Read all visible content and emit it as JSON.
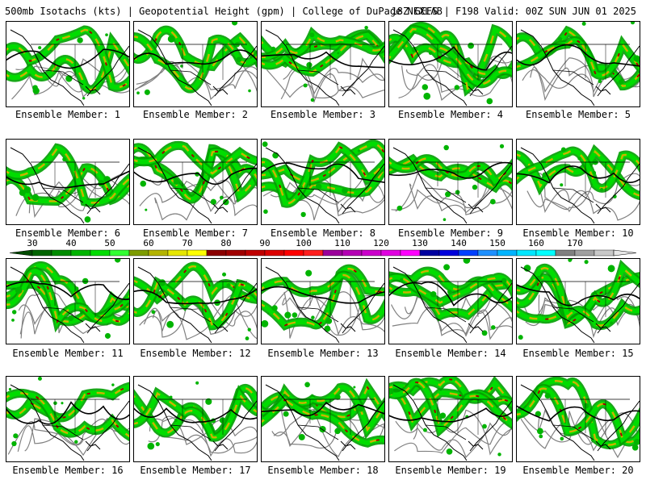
{
  "header": {
    "left": "500mb Isotachs (kts) | Geopotential Height (gpm) | College of DuPage NEXLAB",
    "right": "18Z GEFS | F198 Valid: 00Z SUN JUN 01 2025"
  },
  "panels": [
    {
      "label": "Ensemble Member: 1"
    },
    {
      "label": "Ensemble Member: 2"
    },
    {
      "label": "Ensemble Member: 3"
    },
    {
      "label": "Ensemble Member: 4"
    },
    {
      "label": "Ensemble Member: 5"
    },
    {
      "label": "Ensemble Member: 6"
    },
    {
      "label": "Ensemble Member: 7"
    },
    {
      "label": "Ensemble Member: 8"
    },
    {
      "label": "Ensemble Member: 9"
    },
    {
      "label": "Ensemble Member: 10"
    },
    {
      "label": "Ensemble Member: 11"
    },
    {
      "label": "Ensemble Member: 12"
    },
    {
      "label": "Ensemble Member: 13"
    },
    {
      "label": "Ensemble Member: 14"
    },
    {
      "label": "Ensemble Member: 15"
    },
    {
      "label": "Ensemble Member: 16"
    },
    {
      "label": "Ensemble Member: 17"
    },
    {
      "label": "Ensemble Member: 18"
    },
    {
      "label": "Ensemble Member: 19"
    },
    {
      "label": "Ensemble Member: 20"
    }
  ],
  "colorbar": {
    "labels": [
      "30",
      "40",
      "50",
      "60",
      "70",
      "80",
      "90",
      "100",
      "110",
      "120",
      "130",
      "140",
      "150",
      "160",
      "170"
    ],
    "colors": [
      "#006400",
      "#008c00",
      "#00b400",
      "#00dc00",
      "#32ff32",
      "#7d9c00",
      "#b4b400",
      "#e6e600",
      "#ffff00",
      "#8b0000",
      "#a00000",
      "#c00000",
      "#dc0000",
      "#ff0000",
      "#ff1e1e",
      "#9b009b",
      "#b400b4",
      "#cc00cc",
      "#e000e0",
      "#ff00ff",
      "#0000a0",
      "#0000dc",
      "#0040ff",
      "#1e90ff",
      "#00b4ff",
      "#00e6ff",
      "#00ffff",
      "#808080",
      "#a0a0a0",
      "#c8c8c8"
    ]
  },
  "colors": {
    "isotach_low": "#00a000",
    "isotach_mid": "#c8b400",
    "isotach_high": "#a00000",
    "height_contour": "#000000",
    "map_lines": "#000000",
    "terrain_contour": "#808080"
  }
}
